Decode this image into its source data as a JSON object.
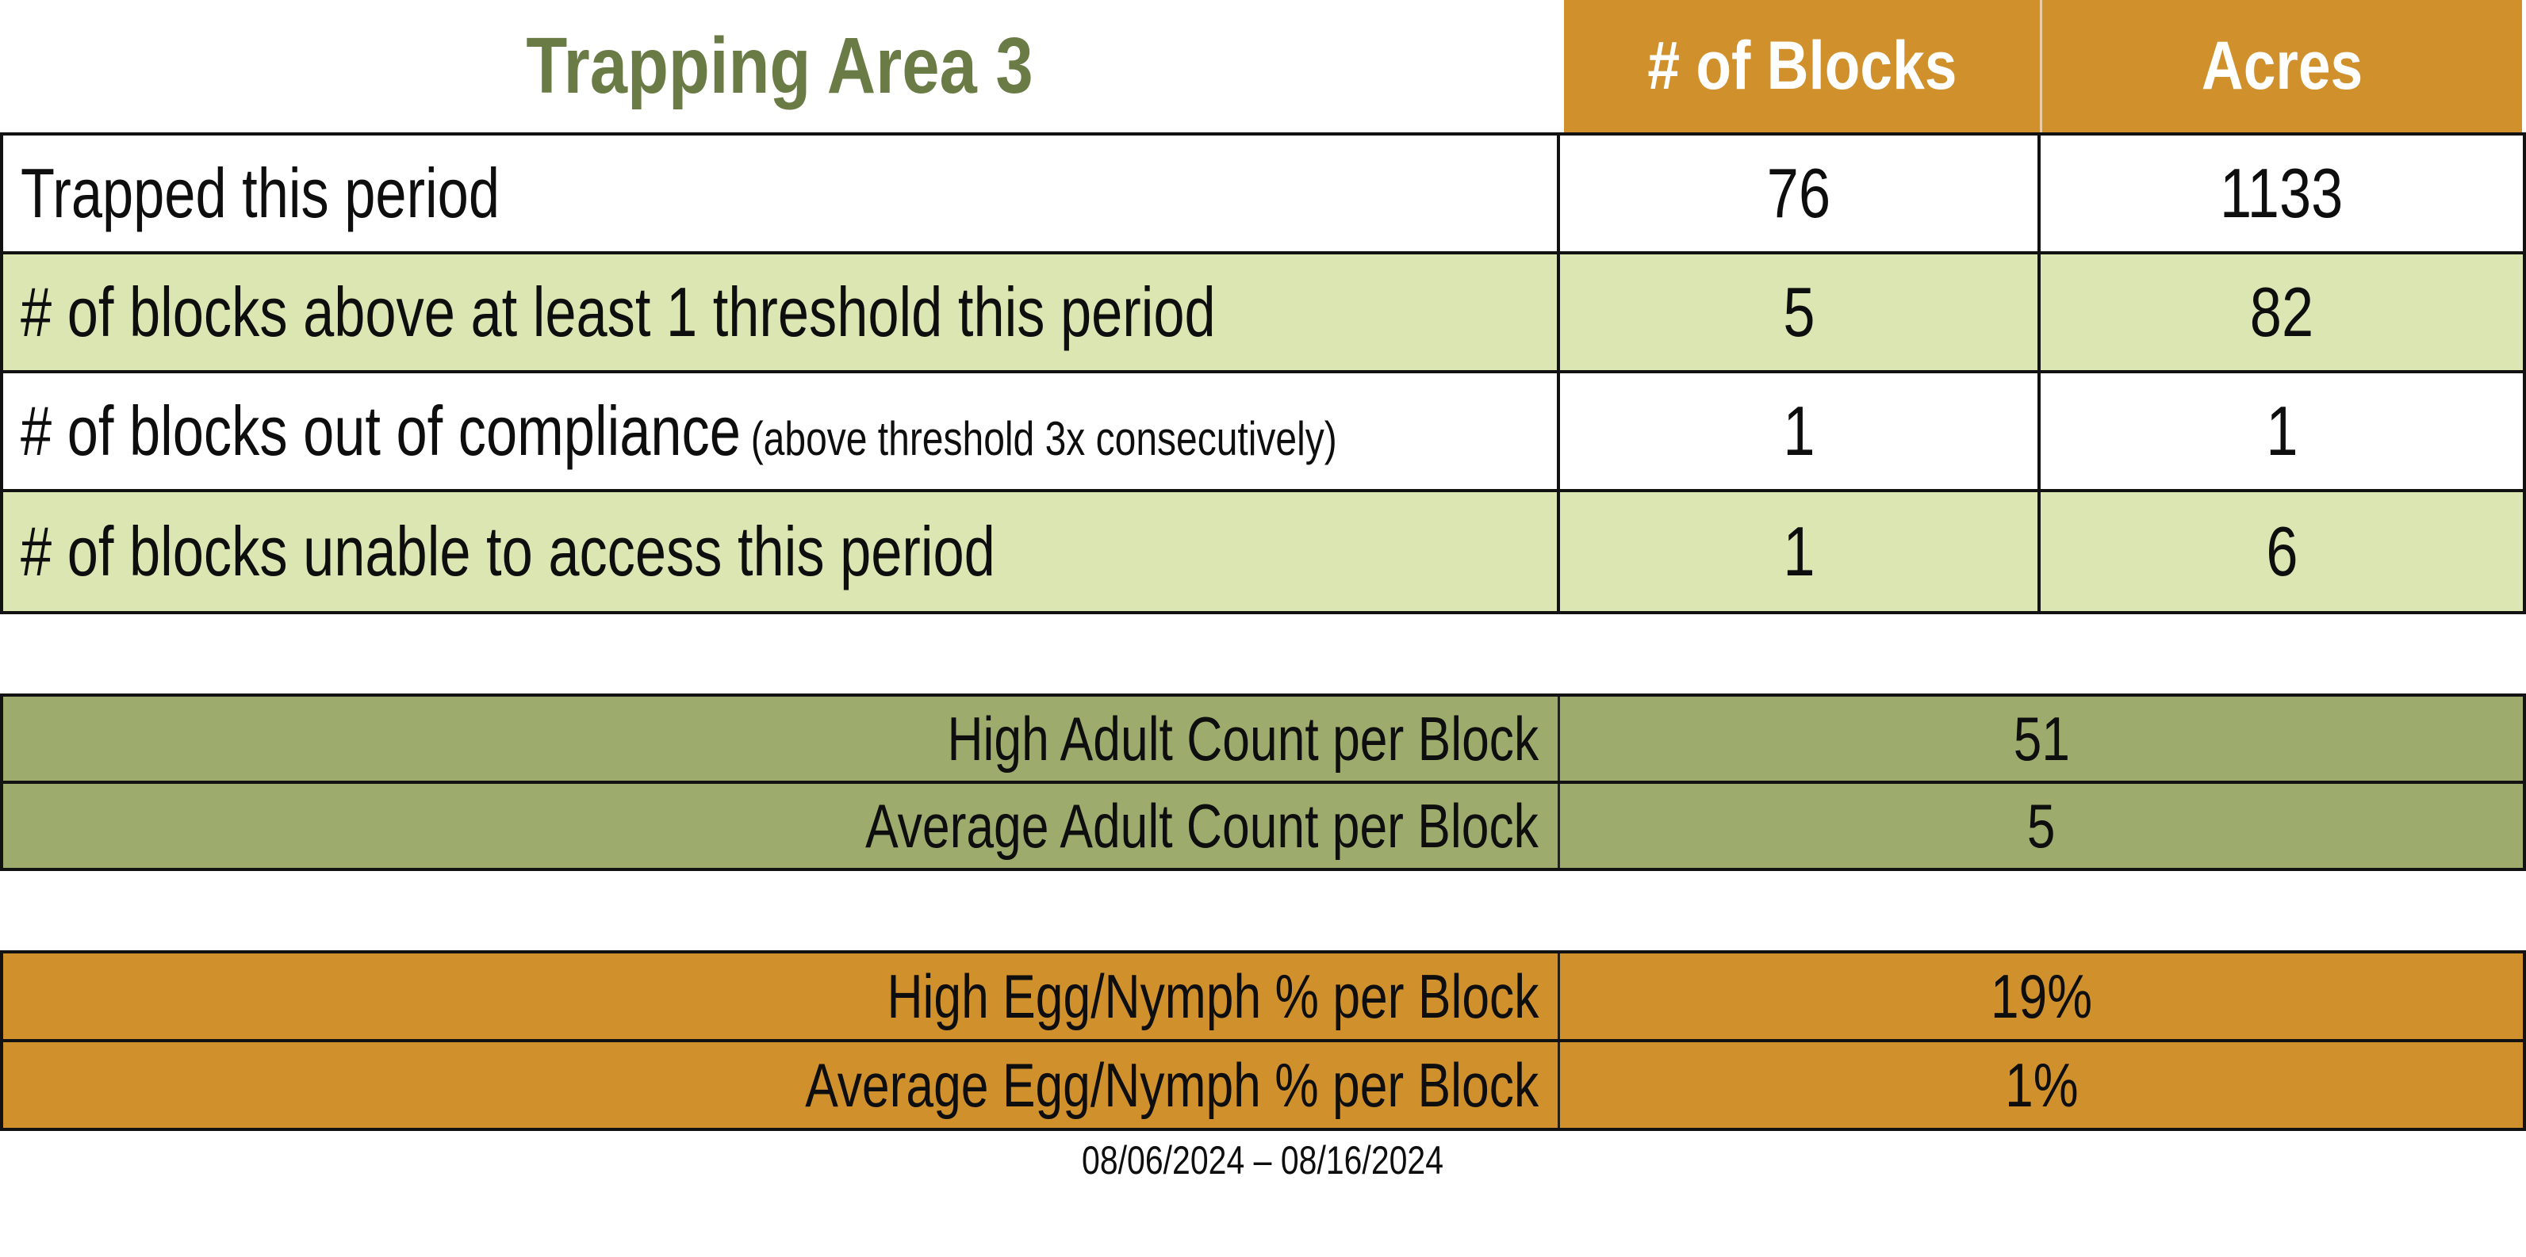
{
  "page": {
    "title": "Trapping Area 3",
    "date_range": "08/06/2024 – 08/16/2024"
  },
  "colors": {
    "header_orange": "#D0912D",
    "stripe_light_green": "#DCE6B2",
    "adult_section_olive": "#9DAB6C",
    "title_green": "#6B7B45",
    "grid_border": "#121212",
    "header_text": "#ffffff",
    "body_text": "#0e0e0e"
  },
  "chart_data": [
    {
      "type": "table",
      "name": "trapping-summary",
      "title": "Trapping Area 3",
      "columns": [
        "# of Blocks",
        "Acres"
      ],
      "rows": [
        {
          "label": "Trapped this period",
          "note": "",
          "blocks": "76",
          "acres": "1133"
        },
        {
          "label": "# of blocks above at least 1 threshold this period",
          "note": "",
          "blocks": "5",
          "acres": "82"
        },
        {
          "label": "# of blocks out of compliance",
          "note": "(above threshold 3x consecutively)",
          "blocks": "1",
          "acres": "1"
        },
        {
          "label": "# of blocks unable to access this period",
          "note": "",
          "blocks": "1",
          "acres": "6"
        }
      ]
    },
    {
      "type": "table",
      "name": "adult-count",
      "rows": [
        {
          "label": "High Adult Count per Block",
          "value": "51"
        },
        {
          "label": "Average Adult Count per Block",
          "value": "5"
        }
      ]
    },
    {
      "type": "table",
      "name": "egg-nymph-percent",
      "rows": [
        {
          "label": "High Egg/Nymph % per Block",
          "value": "19%"
        },
        {
          "label": "Average Egg/Nymph % per Block",
          "value": "1%"
        }
      ]
    }
  ]
}
